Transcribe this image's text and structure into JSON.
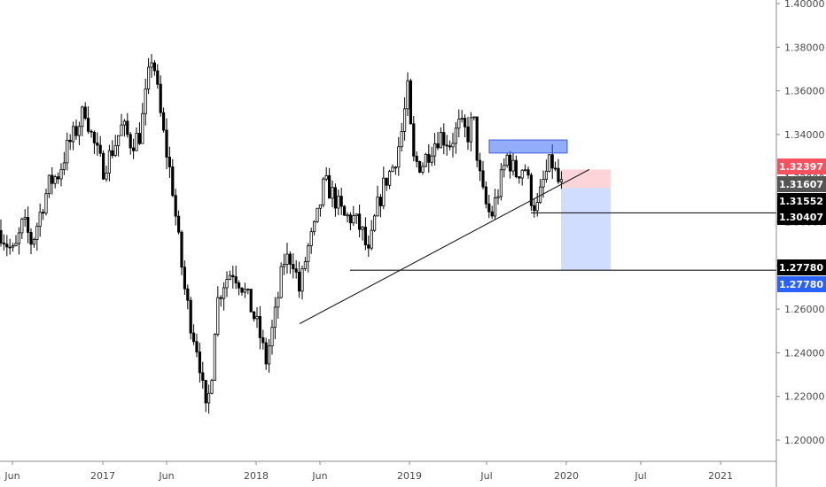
{
  "chart_data": {
    "type": "candlestick",
    "title": "",
    "xlabel": "",
    "ylabel": "",
    "ylim": [
      1.193,
      1.405
    ],
    "y_ticks": [
      "1.40000",
      "1.38000",
      "1.36000",
      "1.34000",
      "1.32000",
      "1.30000",
      "1.28000",
      "1.26000",
      "1.24000",
      "1.22000",
      "1.20000"
    ],
    "x_ticks": [
      "Jun",
      "2017",
      "Jun",
      "2018",
      "Jun",
      "2019",
      "Jul",
      "2020",
      "Jul",
      "2021"
    ],
    "grid": false,
    "price_labels": [
      {
        "value": "1.32397",
        "color": "#f7525f"
      },
      {
        "value": "1.31607",
        "color": "#555555"
      },
      {
        "value": "1.31552",
        "color": "#000000"
      },
      {
        "value": "1.30407",
        "color": "#000000"
      },
      {
        "value": "1.27780",
        "color": "#000000"
      },
      {
        "value": "1.27780",
        "color": "#2962ff"
      }
    ],
    "drawings": {
      "trendline": {
        "from": [
          "2018-03",
          1.2533
        ],
        "to": [
          "2019-12",
          1.324
        ]
      },
      "support_lines": [
        {
          "from": "2019-10",
          "price": 1.30407
        },
        {
          "from": "2018-08",
          "price": 1.2778
        }
      ],
      "resistance_box": {
        "from": "2019-07",
        "to": "2019-11",
        "top": 1.3375,
        "bottom": 1.3315
      },
      "short_position": {
        "entry": 1.31552,
        "stop": 1.32397,
        "target": 1.2778,
        "from": "2019-12",
        "to": "2020-05"
      }
    }
  }
}
